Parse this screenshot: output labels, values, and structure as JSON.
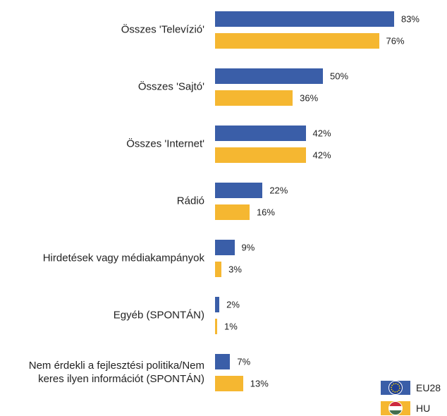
{
  "chart_data": {
    "type": "bar",
    "orientation": "horizontal",
    "categories": [
      "Összes 'Televízió'",
      "Összes 'Sajtó'",
      "Összes 'Internet'",
      "Rádió",
      "Hirdetések vagy médiakampányok",
      "Egyéb (SPONTÁN)",
      "Nem érdekli a fejlesztési politika/Nem keres ilyen információt (SPONTÁN)"
    ],
    "series": [
      {
        "name": "EU28",
        "color": "#3a5ea8",
        "values": [
          83,
          50,
          42,
          22,
          9,
          2,
          7
        ],
        "value_labels": [
          "83%",
          "50%",
          "42%",
          "22%",
          "9%",
          "2%",
          "7%"
        ]
      },
      {
        "name": "HU",
        "color": "#f5b731",
        "values": [
          76,
          36,
          42,
          16,
          3,
          1,
          13
        ],
        "value_labels": [
          "76%",
          "36%",
          "42%",
          "16%",
          "3%",
          "1%",
          "13%"
        ]
      }
    ],
    "xlim": [
      0,
      100
    ],
    "legend": "bottom-right"
  }
}
